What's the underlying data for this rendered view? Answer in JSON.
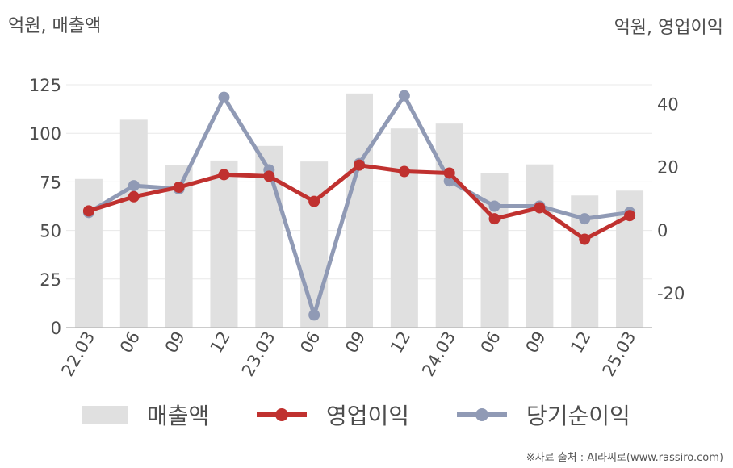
{
  "left_unit": "억원, 매출액",
  "right_unit": "억원, 영업이익",
  "source": "※자료 출처 : AI라씨로(www.rassiro.com)",
  "chart_data": {
    "type": "bar",
    "categories": [
      "22.03",
      "06",
      "09",
      "12",
      "23.03",
      "06",
      "09",
      "12",
      "24.03",
      "06",
      "09",
      "12",
      "25.03"
    ],
    "series": [
      {
        "name": "매출액",
        "type": "bar",
        "axis": "left",
        "values": [
          76.5,
          107,
          83.5,
          86,
          93.5,
          85.5,
          120.5,
          102.5,
          105,
          79.5,
          84,
          68,
          70.5
        ]
      },
      {
        "name": "영업이익",
        "type": "line",
        "axis": "right",
        "values": [
          6,
          10.5,
          13.5,
          17.5,
          17,
          9,
          20.5,
          18.5,
          18,
          3.5,
          7,
          -3,
          4.5
        ]
      },
      {
        "name": "당기순이익",
        "type": "line",
        "axis": "right",
        "values": [
          5.5,
          14,
          13,
          42,
          19,
          -27,
          21,
          42.5,
          15.5,
          7.5,
          7.5,
          3.5,
          5.5
        ]
      }
    ],
    "left_axis": {
      "ylim": [
        0,
        125
      ],
      "ticks": [
        "0",
        "25",
        "50",
        "75",
        "100",
        "125"
      ]
    },
    "right_axis": {
      "ylim": [
        -31,
        46
      ],
      "ticks": [
        "-20",
        "0",
        "20",
        "40"
      ]
    },
    "colors": {
      "bar": "#e0e0e0",
      "operating_profit": "#c0312f",
      "net_income": "#909ab5",
      "grid": "#e8e8e8",
      "axis": "#bbbbbb"
    },
    "legend_position": "bottom",
    "grid": true
  }
}
